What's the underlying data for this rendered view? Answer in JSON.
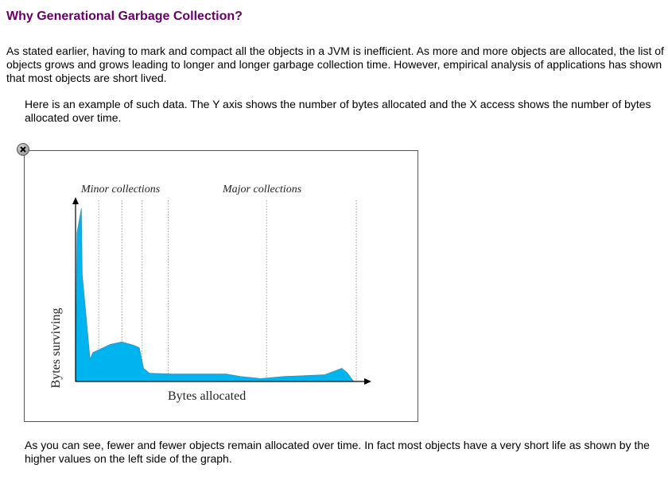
{
  "heading": "Why Generational Garbage Collection?",
  "intro_text": "As stated earlier, having to mark and compact all the objects in a JVM is inefficient. As more and more objects are allocated, the list of objects grows and grows leading to longer and longer garbage collection time. However, empirical analysis of applications has shown that most objects are short lived.",
  "example_text": "Here is an example of such data. The Y axis shows the number of bytes allocated and the X access shows the number of bytes allocated over time.",
  "conclusion_text": "As you can see, fewer and fewer objects remain allocated over time. In fact most objects have a very short life as shown by the higher values on the left side of the graph.",
  "figure": {
    "close_icon": "close-icon"
  },
  "chart_data": {
    "type": "area",
    "xlabel": "Bytes allocated",
    "ylabel": "Bytes surviving",
    "annotations": [
      "Minor collections",
      "Major collections"
    ],
    "fill_color": "#00b4f0",
    "grid": false,
    "minor_collection_x": [
      8,
      16,
      23,
      32
    ],
    "major_collection_x": [
      66,
      97
    ],
    "x": [
      0,
      0.5,
      2,
      2.3,
      5,
      6,
      12,
      16,
      20,
      22,
      23.5,
      24.5,
      25.5,
      33,
      52,
      57,
      64,
      72,
      86,
      92,
      94,
      96
    ],
    "y": [
      0,
      18,
      21,
      13,
      2.7,
      3.5,
      4.5,
      4.8,
      4.4,
      4.1,
      1.6,
      1.3,
      1.0,
      0.9,
      0.9,
      0.6,
      0.35,
      0.6,
      0.8,
      1.6,
      1.0,
      0
    ]
  }
}
